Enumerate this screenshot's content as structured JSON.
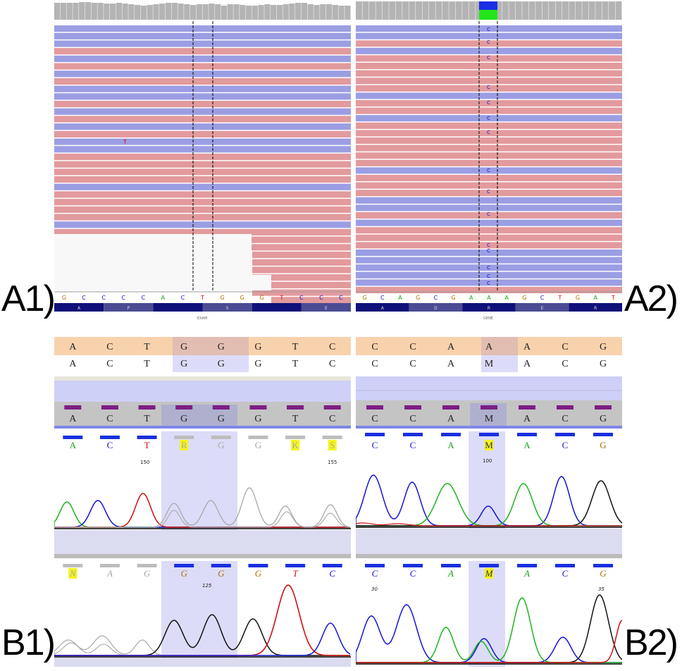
{
  "labels": {
    "A1": "A1)",
    "A2": "A2)",
    "B1": "B1)",
    "B2": "B2)"
  },
  "colors": {
    "read_forward": "#e39a9c",
    "read_reverse": "#9c9ee4",
    "track_blue": "#10107a",
    "shade": "#cfd0f7",
    "peach": "#f7d2ad",
    "gray_track": "#c4c4c4",
    "purple_mark": "#7c1e84"
  },
  "A1": {
    "mismatch_base": "T",
    "ref_seq": [
      "G",
      "C",
      "C",
      "C",
      "C",
      "A",
      "C",
      "T",
      "G",
      "G",
      "G",
      "T",
      "C",
      "C",
      "C"
    ],
    "aa": [
      "A",
      "P",
      "",
      "S",
      "",
      "E"
    ],
    "gene": "EXAM"
  },
  "A2": {
    "variant_base": "C",
    "ref_seq": [
      "G",
      "C",
      "A",
      "G",
      "C",
      "G",
      "A",
      "A",
      "A",
      "G",
      "C",
      "T",
      "G",
      "A",
      "T"
    ],
    "aa": [
      "A",
      "D",
      "R",
      "E",
      "R"
    ],
    "gene": "GENE"
  },
  "B1": {
    "ref": [
      "A",
      "C",
      "T",
      "G",
      "G",
      "G",
      "T",
      "C"
    ],
    "sample": [
      "A",
      "C",
      "T",
      "G",
      "G",
      "G",
      "T",
      "C"
    ],
    "consensus": [
      "A",
      "C",
      "T",
      "G",
      "G",
      "G",
      "T",
      "C"
    ],
    "trace1_calls": [
      "A",
      "C",
      "T",
      "R",
      "G",
      "G",
      "K",
      "S"
    ],
    "trace1_pos": [
      "150",
      "155"
    ],
    "trace2_calls": [
      "N",
      "A",
      "G",
      "G",
      "G",
      "G",
      "T",
      "C"
    ],
    "trace2_pos": "125"
  },
  "B2": {
    "ref": [
      "C",
      "C",
      "A",
      "A",
      "A",
      "C",
      "G"
    ],
    "sample": [
      "C",
      "C",
      "A",
      "M",
      "A",
      "C",
      "G"
    ],
    "consensus": [
      "C",
      "C",
      "A",
      "M",
      "A",
      "C",
      "G"
    ],
    "trace1_calls": [
      "C",
      "C",
      "A",
      "M",
      "A",
      "C",
      "G"
    ],
    "trace1_pos": "100",
    "trace2_calls": [
      "C",
      "C",
      "A",
      "M",
      "A",
      "C",
      "G"
    ],
    "trace2_pos": [
      "30",
      "35"
    ]
  }
}
